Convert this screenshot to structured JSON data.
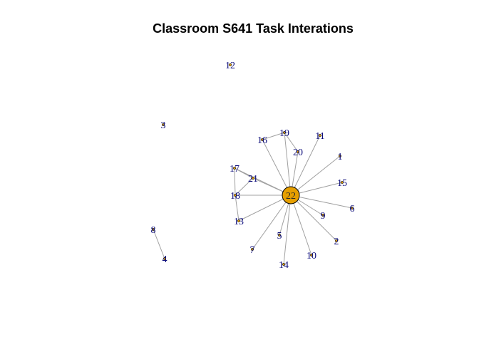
{
  "title": "Classroom S641 Task Interations",
  "accent_color": "#e69f00",
  "label_color": "#0b0b7a",
  "edge_color": "#a0a0a0",
  "nodes": [
    {
      "id": "1",
      "label": "1"
    },
    {
      "id": "2",
      "label": "2"
    },
    {
      "id": "3",
      "label": "3"
    },
    {
      "id": "4",
      "label": "4"
    },
    {
      "id": "5",
      "label": "5"
    },
    {
      "id": "6",
      "label": "6"
    },
    {
      "id": "7",
      "label": "7"
    },
    {
      "id": "8",
      "label": "8"
    },
    {
      "id": "9",
      "label": "9"
    },
    {
      "id": "10",
      "label": "10"
    },
    {
      "id": "11",
      "label": "11"
    },
    {
      "id": "12",
      "label": "12"
    },
    {
      "id": "13",
      "label": "13"
    },
    {
      "id": "14",
      "label": "14"
    },
    {
      "id": "15",
      "label": "15"
    },
    {
      "id": "16",
      "label": "16"
    },
    {
      "id": "17",
      "label": "17"
    },
    {
      "id": "18",
      "label": "18"
    },
    {
      "id": "19",
      "label": "19"
    },
    {
      "id": "20",
      "label": "20"
    },
    {
      "id": "21",
      "label": "21"
    },
    {
      "id": "22",
      "label": "22",
      "hub": true
    }
  ],
  "edges": [
    [
      "22",
      "1"
    ],
    [
      "22",
      "2"
    ],
    [
      "22",
      "5"
    ],
    [
      "22",
      "6"
    ],
    [
      "22",
      "7"
    ],
    [
      "22",
      "9"
    ],
    [
      "22",
      "10"
    ],
    [
      "22",
      "11"
    ],
    [
      "22",
      "13"
    ],
    [
      "22",
      "14"
    ],
    [
      "22",
      "15"
    ],
    [
      "22",
      "16"
    ],
    [
      "22",
      "17"
    ],
    [
      "22",
      "18"
    ],
    [
      "22",
      "19"
    ],
    [
      "22",
      "20"
    ],
    [
      "22",
      "21"
    ],
    [
      "16",
      "19"
    ],
    [
      "19",
      "20"
    ],
    [
      "17",
      "21"
    ],
    [
      "17",
      "18"
    ],
    [
      "18",
      "21"
    ],
    [
      "18",
      "13"
    ],
    [
      "8",
      "4"
    ]
  ]
}
